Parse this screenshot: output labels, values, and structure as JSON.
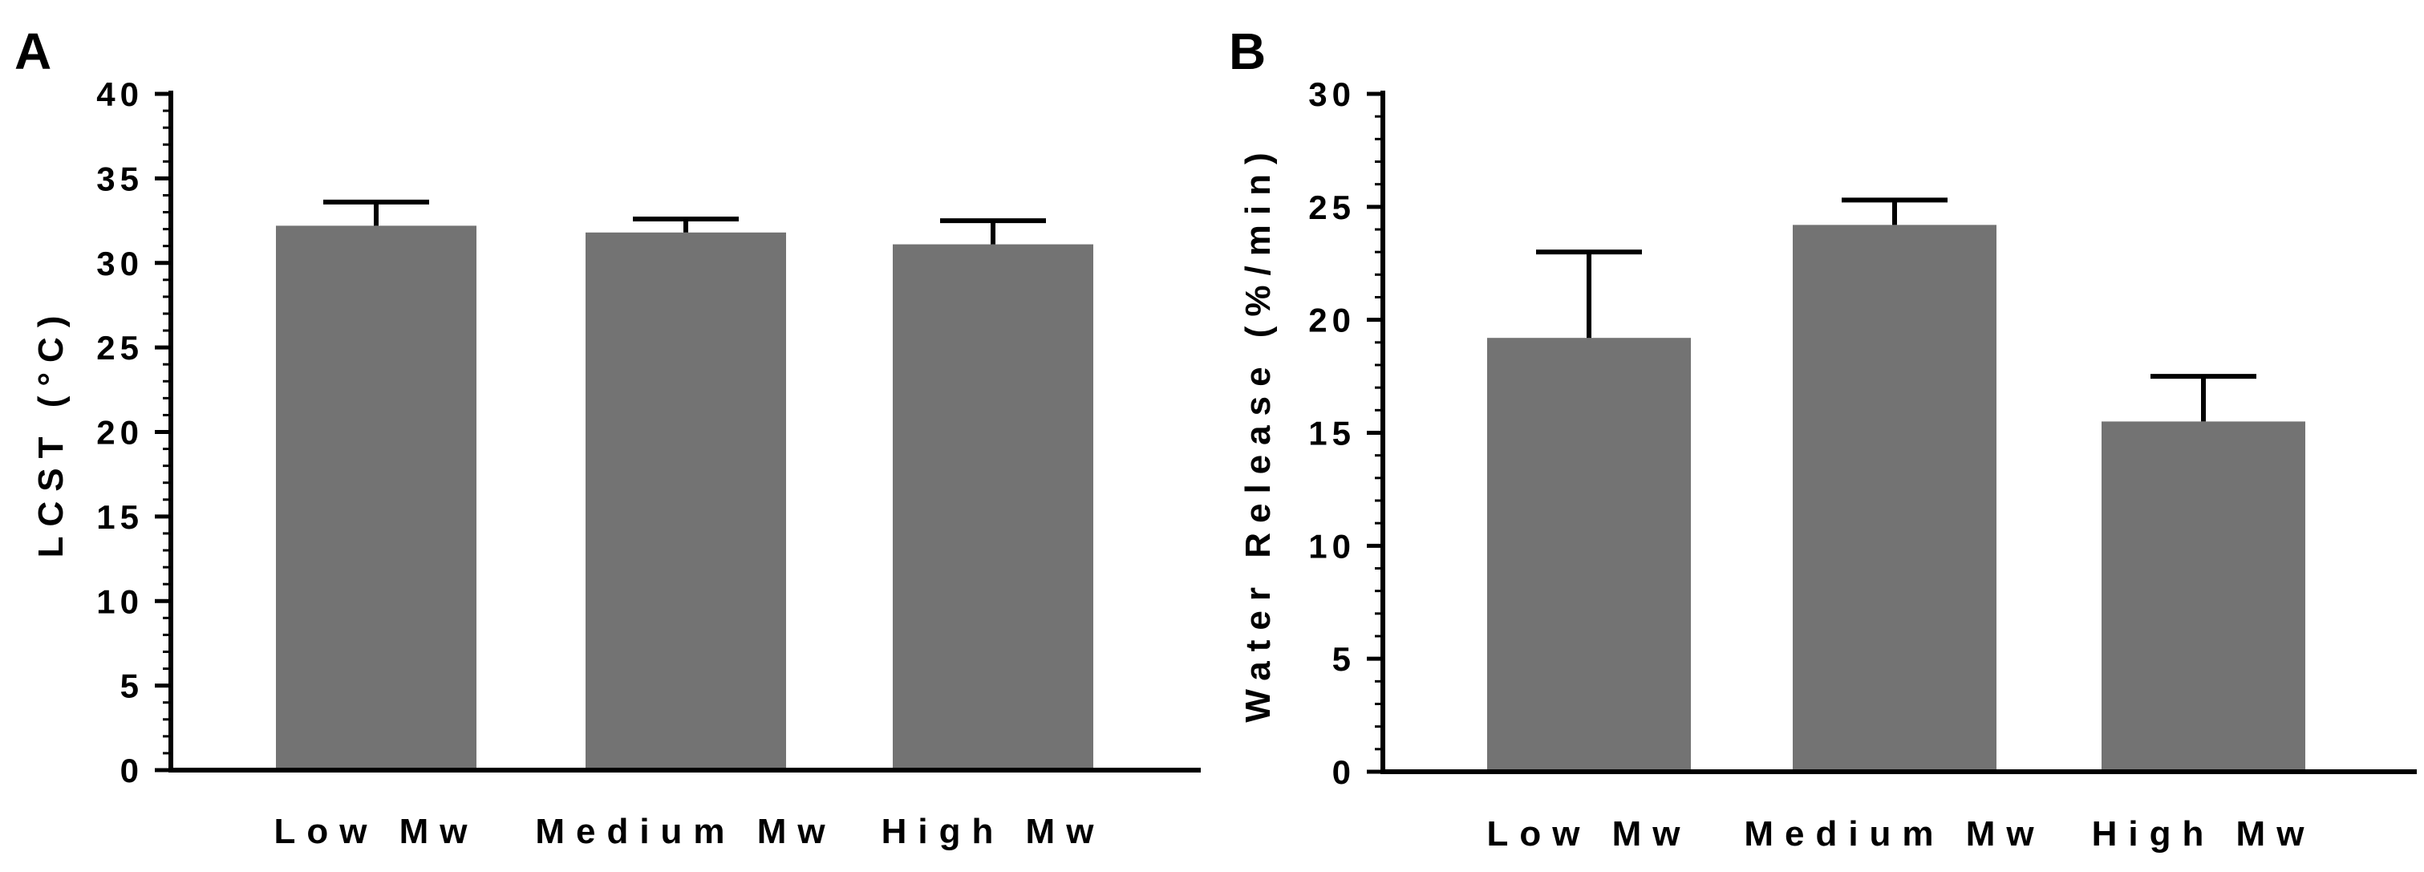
{
  "chart_data": [
    {
      "panel": "A",
      "type": "bar",
      "categories": [
        "Low Mw",
        "Medium Mw",
        "High Mw"
      ],
      "values": [
        32.2,
        31.8,
        31.1
      ],
      "errors": [
        1.4,
        0.8,
        1.4
      ],
      "ylabel": "LCST (°C)",
      "xlabel": "",
      "ylim": [
        0,
        40
      ],
      "major_ticks": [
        0,
        5,
        10,
        15,
        20,
        25,
        30,
        35,
        40
      ],
      "minor_step": 1,
      "bar_color": "#737373",
      "grid": false
    },
    {
      "panel": "B",
      "type": "bar",
      "categories": [
        "Low Mw",
        "Medium Mw",
        "High Mw"
      ],
      "values": [
        19.2,
        24.2,
        15.5
      ],
      "errors": [
        3.8,
        1.1,
        2.0
      ],
      "ylabel": "Water Release (%/min)",
      "xlabel": "",
      "ylim": [
        0,
        30
      ],
      "major_ticks": [
        0,
        5,
        10,
        15,
        20,
        25,
        30
      ],
      "minor_step": 1,
      "bar_color": "#737373",
      "grid": false
    }
  ]
}
